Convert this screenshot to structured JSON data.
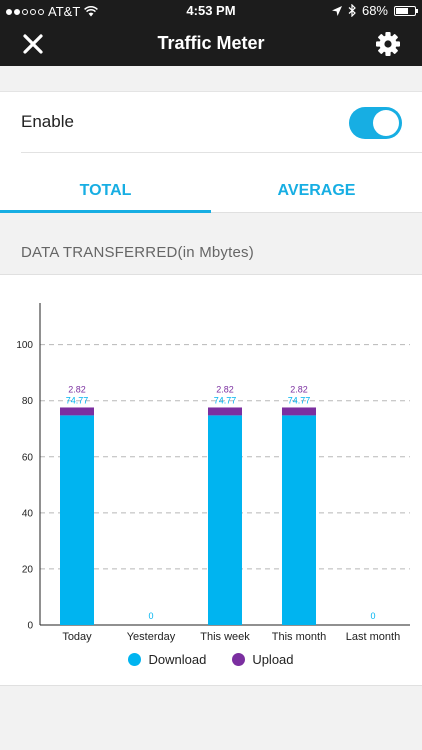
{
  "status_bar": {
    "carrier": "AT&T",
    "time": "4:53 PM",
    "battery": "68%",
    "battery_level": 0.68,
    "signal_bars": 2,
    "icons": [
      "wifi-icon",
      "location-icon",
      "bluetooth-icon"
    ]
  },
  "header": {
    "title": "Traffic Meter",
    "close_icon": "close-icon",
    "settings_icon": "gear-icon"
  },
  "enable": {
    "label": "Enable",
    "on": true
  },
  "tabs": [
    {
      "label": "TOTAL",
      "active": true
    },
    {
      "label": "AVERAGE",
      "active": false
    }
  ],
  "section_label": "DATA TRANSFERRED(in Mbytes)",
  "colors": {
    "accent": "#17aee3",
    "download": "#00b4f0",
    "upload": "#7b2fa0",
    "header_bg": "#1c1c1c"
  },
  "chart_data": {
    "type": "bar",
    "stacked": true,
    "categories": [
      "Today",
      "Yesterday",
      "This week",
      "This month",
      "Last month"
    ],
    "series": [
      {
        "name": "Download",
        "values": [
          74.77,
          0,
          74.77,
          74.77,
          0
        ],
        "labels": [
          "74.77",
          "0",
          "74.77",
          "74.77",
          "0"
        ]
      },
      {
        "name": "Upload",
        "values": [
          2.82,
          0,
          2.82,
          2.82,
          0
        ],
        "labels": [
          "2.82",
          "",
          "2.82",
          "2.82",
          ""
        ]
      }
    ],
    "y_ticks": [
      "0",
      "20",
      "40",
      "60",
      "80",
      "100"
    ],
    "ylim": [
      0,
      112
    ],
    "grid": true,
    "legend": "bottom"
  }
}
